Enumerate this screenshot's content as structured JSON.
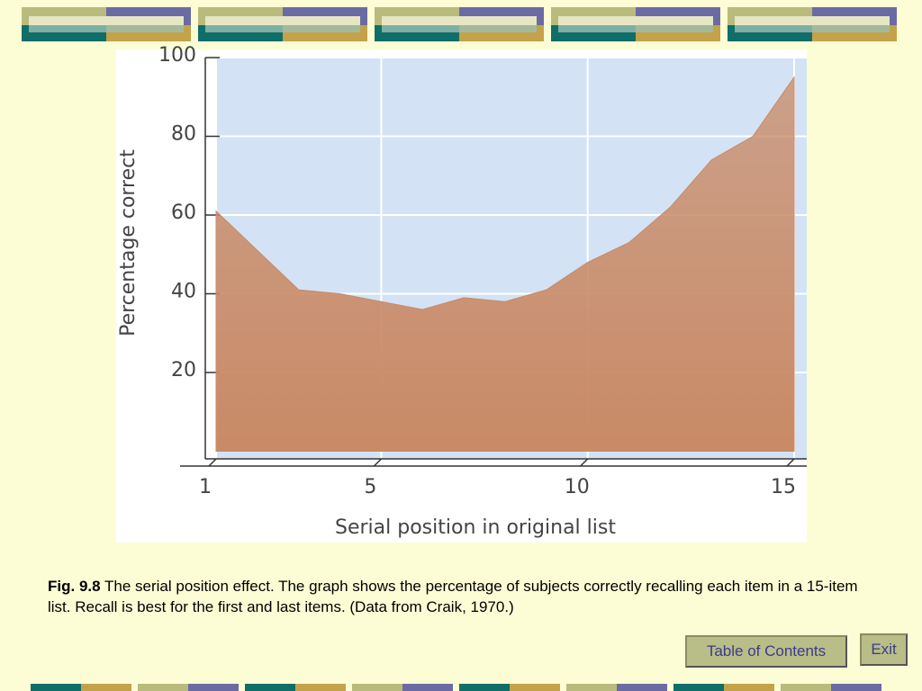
{
  "chart_data": {
    "type": "area",
    "x": [
      1,
      2,
      3,
      4,
      5,
      6,
      7,
      8,
      9,
      10,
      11,
      12,
      13,
      14,
      15
    ],
    "values": [
      61,
      51,
      41,
      40,
      38,
      36,
      39,
      38,
      41,
      48,
      53,
      62,
      74,
      80,
      95
    ],
    "color": "#c98a66",
    "xlim": [
      1,
      15
    ],
    "xticks": [
      1,
      5,
      10,
      15
    ],
    "ylim": [
      0,
      100
    ],
    "yticks": [
      20,
      40,
      60,
      80,
      100
    ],
    "grid": true,
    "xlabel": "Serial position in original list",
    "ylabel": "Percentage correct"
  },
  "caption": {
    "label": "Fig. 9.8",
    "text": "The serial position effect. The graph shows the percentage of subjects correctly recalling each item in a 15-item list. Recall is best for the first and last items. (Data from Craik, 1970.)"
  },
  "buttons": [
    "Table of Contents",
    "Exit"
  ]
}
